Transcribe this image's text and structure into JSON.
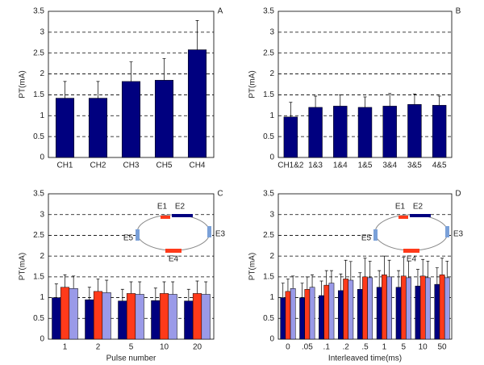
{
  "chart_data": [
    {
      "type": "bar",
      "label": "A",
      "ylabel": "PT(mA)",
      "categories": [
        "CH1",
        "CH2",
        "CH3",
        "CH5",
        "CH4"
      ],
      "series": [
        {
          "color": "#00007f",
          "values": [
            1.42,
            1.42,
            1.82,
            1.85,
            2.58
          ],
          "errors": [
            0.4,
            0.4,
            0.47,
            0.52,
            0.7
          ]
        }
      ],
      "ylim": [
        0,
        3.5
      ],
      "yticks": [
        0,
        0.5,
        1,
        1.5,
        2,
        2.5,
        3,
        3.5
      ],
      "grid": true
    },
    {
      "type": "bar",
      "label": "B",
      "ylabel": "PT(mA)",
      "categories": [
        "CH1&2",
        "1&3",
        "1&4",
        "1&5",
        "3&4",
        "3&5",
        "4&5"
      ],
      "series": [
        {
          "color": "#00007f",
          "values": [
            0.97,
            1.2,
            1.23,
            1.2,
            1.23,
            1.27,
            1.25
          ],
          "errors": [
            0.35,
            0.27,
            0.27,
            0.25,
            0.3,
            0.25,
            0.22
          ]
        }
      ],
      "ylim": [
        0,
        3.5
      ],
      "yticks": [
        0,
        0.5,
        1,
        1.5,
        2,
        2.5,
        3,
        3.5
      ],
      "grid": true
    },
    {
      "type": "bar",
      "label": "C",
      "ylabel": "PT(mA)",
      "xlabel": "Pulse number",
      "categories": [
        "1",
        "2",
        "5",
        "10",
        "20"
      ],
      "series": [
        {
          "color": "#00007f",
          "values": [
            1.0,
            0.95,
            0.92,
            0.93,
            0.92
          ],
          "errors": [
            0.33,
            0.3,
            0.28,
            0.3,
            0.28
          ]
        },
        {
          "color": "#ff3a1a",
          "values": [
            1.25,
            1.15,
            1.1,
            1.1,
            1.1
          ],
          "errors": [
            0.3,
            0.3,
            0.28,
            0.28,
            0.3
          ]
        },
        {
          "color": "#9a9ae8",
          "values": [
            1.22,
            1.12,
            1.08,
            1.08,
            1.08
          ],
          "errors": [
            0.3,
            0.3,
            0.3,
            0.3,
            0.3
          ]
        }
      ],
      "ylim": [
        0,
        3.5
      ],
      "yticks": [
        0,
        0.5,
        1,
        1.5,
        2,
        2.5,
        3,
        3.5
      ],
      "grid": true,
      "annotations": [
        "E1",
        "E2",
        "E3",
        "E4",
        "E5"
      ]
    },
    {
      "type": "bar",
      "label": "D",
      "ylabel": "PT(mA)",
      "xlabel": "Interleaved time(ms)",
      "categories": [
        "0",
        ".05",
        ".1",
        ".2",
        ".5",
        "1",
        "5",
        "10",
        "50"
      ],
      "series": [
        {
          "color": "#00007f",
          "values": [
            1.0,
            1.0,
            1.05,
            1.17,
            1.2,
            1.25,
            1.25,
            1.28,
            1.32
          ],
          "errors": [
            0.35,
            0.35,
            0.35,
            0.4,
            0.4,
            0.4,
            0.4,
            0.4,
            0.4
          ]
        },
        {
          "color": "#ff3a1a",
          "values": [
            1.15,
            1.2,
            1.3,
            1.45,
            1.5,
            1.55,
            1.52,
            1.52,
            1.55
          ],
          "errors": [
            0.3,
            0.3,
            0.35,
            0.45,
            0.45,
            0.45,
            0.45,
            0.4,
            0.4
          ]
        },
        {
          "color": "#9a9ae8",
          "values": [
            1.22,
            1.25,
            1.35,
            1.42,
            1.48,
            1.5,
            1.48,
            1.48,
            1.48
          ],
          "errors": [
            0.3,
            0.3,
            0.3,
            0.45,
            0.4,
            0.4,
            0.4,
            0.4,
            0.4
          ]
        }
      ],
      "ylim": [
        0,
        3.5
      ],
      "yticks": [
        0,
        0.5,
        1,
        1.5,
        2,
        2.5,
        3,
        3.5
      ],
      "grid": true,
      "annotations": [
        "E1",
        "E2",
        "E3",
        "E4",
        "E5"
      ]
    }
  ]
}
